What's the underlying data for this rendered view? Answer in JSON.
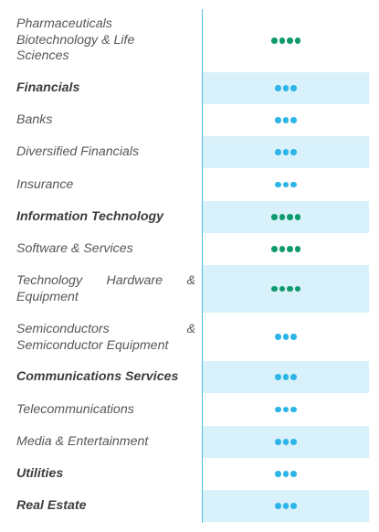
{
  "colors": {
    "shaded_row": "#d8f1fb",
    "divider": "#4fbfe0",
    "dot_green": "#0f9a6e",
    "dot_blue": "#2cb5e6",
    "label_text": "#555759"
  },
  "rows": [
    {
      "label": "Pharmaceuticals Biotechnology & Life Sciences",
      "bold": false,
      "shaded": false,
      "dots": 4,
      "dot_color": "green"
    },
    {
      "label": "Financials",
      "bold": true,
      "shaded": true,
      "dots": 3,
      "dot_color": "blue"
    },
    {
      "label": "Banks",
      "bold": false,
      "shaded": false,
      "dots": 3,
      "dot_color": "blue"
    },
    {
      "label": "Diversified Financials",
      "bold": false,
      "shaded": true,
      "dots": 3,
      "dot_color": "blue"
    },
    {
      "label": "Insurance",
      "bold": false,
      "shaded": false,
      "dots": 3,
      "dot_color": "blue"
    },
    {
      "label": "Information Technology",
      "bold": true,
      "shaded": true,
      "dots": 4,
      "dot_color": "green"
    },
    {
      "label": "Software & Services",
      "bold": false,
      "shaded": false,
      "dots": 4,
      "dot_color": "green"
    },
    {
      "label": "Technology Hardware & Equipment",
      "bold": false,
      "shaded": true,
      "dots": 4,
      "dot_color": "green"
    },
    {
      "label": "Semiconductors & Semiconductor Equipment",
      "bold": false,
      "shaded": false,
      "dots": 3,
      "dot_color": "blue"
    },
    {
      "label": "Communications Services",
      "bold": true,
      "shaded": true,
      "dots": 3,
      "dot_color": "blue"
    },
    {
      "label": "Telecommunications",
      "bold": false,
      "shaded": false,
      "dots": 3,
      "dot_color": "blue"
    },
    {
      "label": "Media & Entertainment",
      "bold": false,
      "shaded": true,
      "dots": 3,
      "dot_color": "blue"
    },
    {
      "label": "Utilities",
      "bold": true,
      "shaded": false,
      "dots": 3,
      "dot_color": "blue"
    },
    {
      "label": "Real Estate",
      "bold": true,
      "shaded": true,
      "dots": 3,
      "dot_color": "blue"
    }
  ]
}
